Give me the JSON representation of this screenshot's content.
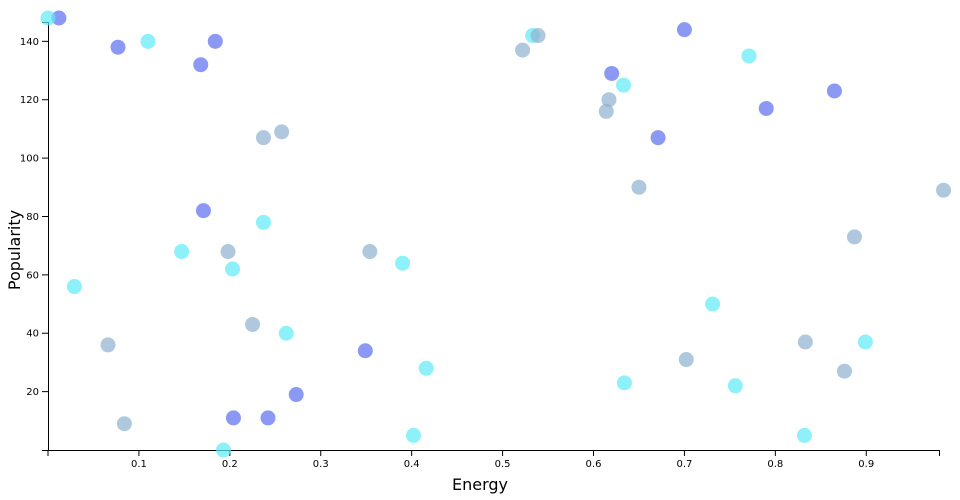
{
  "chart_data": {
    "type": "scatter",
    "xlabel": "Energy",
    "ylabel": "Popularity",
    "xlim": [
      0.0,
      0.98
    ],
    "ylim": [
      0,
      148
    ],
    "xticks": [
      0.1,
      0.2,
      0.3,
      0.4,
      0.5,
      0.6,
      0.7,
      0.8,
      0.9
    ],
    "xtick_labels": [
      "0.1",
      "0.2",
      "0.3",
      "0.4",
      "0.5",
      "0.6",
      "0.7",
      "0.8",
      "0.9"
    ],
    "yticks": [
      20,
      40,
      60,
      80,
      100,
      120,
      140
    ],
    "ytick_labels": [
      "20",
      "40",
      "60",
      "80",
      "100",
      "120",
      "140"
    ],
    "grid": false,
    "legend": "none",
    "colors": [
      "#5b6ef0",
      "#5ee9f7",
      "#8fb0d0"
    ],
    "series": [
      {
        "color": "#5b6ef0",
        "points": [
          {
            "x": 0.012,
            "y": 148
          },
          {
            "x": 0.077,
            "y": 138
          },
          {
            "x": 0.184,
            "y": 140
          },
          {
            "x": 0.168,
            "y": 132
          },
          {
            "x": 0.171,
            "y": 82
          },
          {
            "x": 0.204,
            "y": 11
          },
          {
            "x": 0.242,
            "y": 11
          },
          {
            "x": 0.273,
            "y": 19
          },
          {
            "x": 0.349,
            "y": 34
          },
          {
            "x": 0.62,
            "y": 129
          },
          {
            "x": 0.671,
            "y": 107
          },
          {
            "x": 0.7,
            "y": 144
          },
          {
            "x": 0.79,
            "y": 117
          },
          {
            "x": 0.865,
            "y": 123
          }
        ]
      },
      {
        "color": "#5ee9f7",
        "points": [
          {
            "x": 0.0,
            "y": 148
          },
          {
            "x": 0.11,
            "y": 140
          },
          {
            "x": 0.029,
            "y": 56
          },
          {
            "x": 0.147,
            "y": 68
          },
          {
            "x": 0.203,
            "y": 62
          },
          {
            "x": 0.237,
            "y": 78
          },
          {
            "x": 0.262,
            "y": 40
          },
          {
            "x": 0.193,
            "y": 0
          },
          {
            "x": 0.39,
            "y": 64
          },
          {
            "x": 0.416,
            "y": 28
          },
          {
            "x": 0.402,
            "y": 5
          },
          {
            "x": 0.533,
            "y": 142
          },
          {
            "x": 0.633,
            "y": 125
          },
          {
            "x": 0.634,
            "y": 23
          },
          {
            "x": 0.731,
            "y": 50
          },
          {
            "x": 0.756,
            "y": 22
          },
          {
            "x": 0.771,
            "y": 135
          },
          {
            "x": 0.832,
            "y": 5
          },
          {
            "x": 0.899,
            "y": 37
          }
        ]
      },
      {
        "color": "#8fb0d0",
        "points": [
          {
            "x": 0.066,
            "y": 36
          },
          {
            "x": 0.084,
            "y": 9
          },
          {
            "x": 0.198,
            "y": 68
          },
          {
            "x": 0.225,
            "y": 43
          },
          {
            "x": 0.237,
            "y": 107
          },
          {
            "x": 0.257,
            "y": 109
          },
          {
            "x": 0.354,
            "y": 68
          },
          {
            "x": 0.522,
            "y": 137
          },
          {
            "x": 0.539,
            "y": 142
          },
          {
            "x": 0.614,
            "y": 116
          },
          {
            "x": 0.617,
            "y": 120
          },
          {
            "x": 0.65,
            "y": 90
          },
          {
            "x": 0.702,
            "y": 31
          },
          {
            "x": 0.833,
            "y": 37
          },
          {
            "x": 0.876,
            "y": 27
          },
          {
            "x": 0.887,
            "y": 73
          },
          {
            "x": 0.985,
            "y": 89
          }
        ]
      }
    ]
  }
}
